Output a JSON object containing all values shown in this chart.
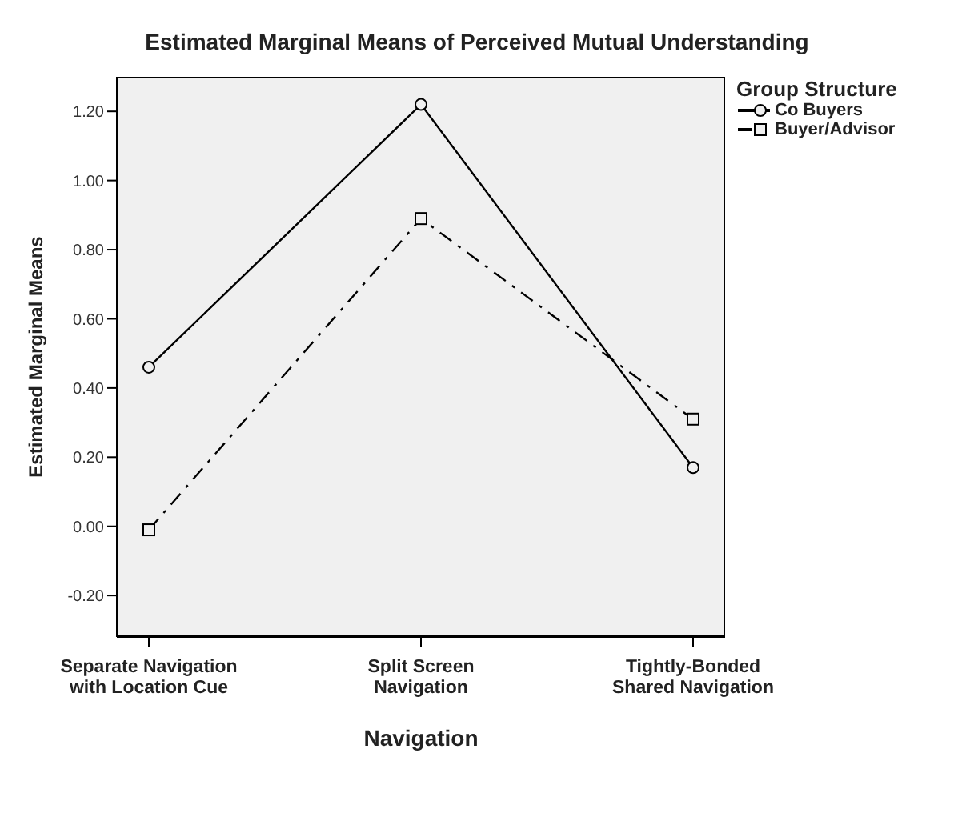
{
  "chart_data": {
    "type": "line",
    "title": "Estimated Marginal Means of Perceived Mutual Understanding",
    "xlabel": "Navigation",
    "ylabel": "Estimated Marginal Means",
    "legend_title": "Group Structure",
    "categories": [
      "Separate Navigation\nwith Location Cue",
      "Split Screen\nNavigation",
      "Tightly-Bonded\nShared Navigation"
    ],
    "series": [
      {
        "name": "Co Buyers",
        "color": "#000000",
        "values": [
          0.46,
          1.22,
          0.17
        ],
        "marker": "circle",
        "line_style": "solid"
      },
      {
        "name": "Buyer/Advisor",
        "color": "#000000",
        "values": [
          -0.01,
          0.89,
          0.31
        ],
        "marker": "square",
        "line_style": "dashed"
      }
    ],
    "ylim": [
      -0.32,
      1.3
    ],
    "yticks": [
      {
        "value": -0.2,
        "label": "-0.20"
      },
      {
        "value": 0,
        "label": "0.00"
      },
      {
        "value": 0.2,
        "label": "0.20"
      },
      {
        "value": 0.4,
        "label": "0.40"
      },
      {
        "value": 0.6,
        "label": "0.60"
      },
      {
        "value": 0.8,
        "label": "0.80"
      },
      {
        "value": 1,
        "label": "1.00"
      },
      {
        "value": 1.2,
        "label": "1.20"
      }
    ],
    "grid": false,
    "legend": "top right"
  }
}
